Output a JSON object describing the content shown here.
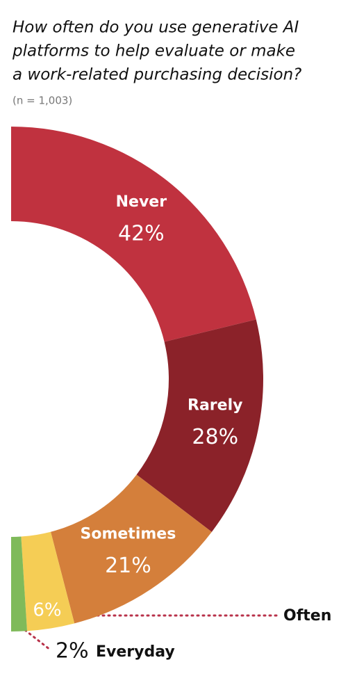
{
  "chart_data": {
    "type": "donut-half",
    "title": [
      "How often do you use generative AI",
      "platforms to help evaluate or make",
      "a work-related purchasing decision?"
    ],
    "subtitle": "(n = 1,003)",
    "categories": [
      "Never",
      "Rarely",
      "Sometimes",
      "Often",
      "Everyday"
    ],
    "values": [
      42,
      28,
      21,
      6,
      2
    ],
    "value_labels": [
      "42%",
      "28%",
      "21%",
      "6%",
      "2%"
    ],
    "colors": [
      "#c0323f",
      "#8b2229",
      "#d47f3b",
      "#f5cd55",
      "#7fba5a"
    ]
  }
}
